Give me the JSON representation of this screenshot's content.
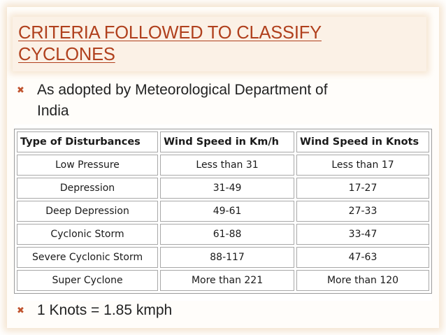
{
  "slide": {
    "title_line1": "CRITERIA FOLLOWED TO CLASSIFY",
    "title_line2": "CYCLONES",
    "bullet_marker": "✖",
    "bullet1_line1": "As adopted by Meteorological Department of",
    "bullet1_line2": "India",
    "bullet2": "1 Knots = 1.85 kmph"
  },
  "table": {
    "headers": [
      "Type of Disturbances",
      "Wind Speed in Km/h",
      "Wind Speed in Knots"
    ],
    "rows": [
      [
        "Low Pressure",
        "Less than 31",
        "Less than 17"
      ],
      [
        "Depression",
        "31-49",
        "17-27"
      ],
      [
        "Deep Depression",
        "49-61",
        "27-33"
      ],
      [
        "Cyclonic Storm",
        "61-88",
        "33-47"
      ],
      [
        "Severe Cyclonic Storm",
        "88-117",
        "47-63"
      ],
      [
        "Super Cyclone",
        "More than 221",
        "More than 120"
      ]
    ]
  },
  "colors": {
    "title": "#b0401d",
    "bullet_marker": "#c0532e",
    "title_bar_bg": "#fbf1e6"
  }
}
